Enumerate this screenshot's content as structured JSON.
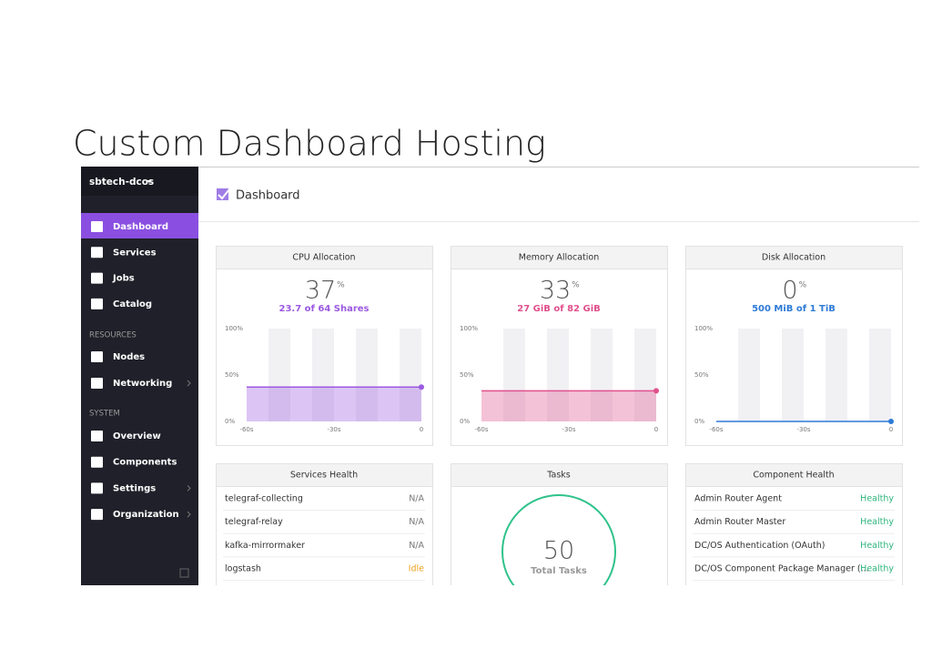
{
  "slide_title": "Custom Dashboard Hosting",
  "sidebar": {
    "cluster": "sbtech-dcos",
    "main_items": [
      "Dashboard",
      "Services",
      "Jobs",
      "Catalog"
    ],
    "resources": {
      "heading": "RESOURCES",
      "items": [
        "Nodes",
        "Networking"
      ]
    },
    "system": {
      "heading": "SYSTEM",
      "items": [
        "Overview",
        "Components",
        "Settings",
        "Organization"
      ]
    }
  },
  "page_header": "Dashboard",
  "chart_axis": {
    "yticks": [
      "100%",
      "50%",
      "0%"
    ],
    "xticks": [
      "-60s",
      "-30s",
      "0"
    ]
  },
  "allocation_cards": [
    {
      "title": "CPU Allocation",
      "percent": 37,
      "unit": "%",
      "detail": "23.7 of 64 Shares",
      "color": "#9b59e0"
    },
    {
      "title": "Memory Allocation",
      "percent": 33,
      "unit": "%",
      "detail": "27 GiB of 82 GiB",
      "color": "#e0508c"
    },
    {
      "title": "Disk Allocation",
      "percent": 0,
      "unit": "%",
      "detail": "500 MiB of 1 TiB",
      "color": "#2d7ad6"
    }
  ],
  "services_health": {
    "title": "Services Health",
    "rows": [
      [
        "telegraf-collecting",
        "N/A"
      ],
      [
        "telegraf-relay",
        "N/A"
      ],
      [
        "kafka-mirrormaker",
        "N/A"
      ],
      [
        "logstash",
        "Idle"
      ]
    ]
  },
  "tasks": {
    "title": "Tasks",
    "count": 50,
    "label": "Total Tasks"
  },
  "component_health": {
    "title": "Component Health",
    "rows": [
      [
        "Admin Router Agent",
        "Healthy"
      ],
      [
        "Admin Router Master",
        "Healthy"
      ],
      [
        "DC/OS Authentication (OAuth)",
        "Healthy"
      ],
      [
        "DC/OS Component Package Manager (...",
        "Healthy"
      ]
    ]
  }
}
